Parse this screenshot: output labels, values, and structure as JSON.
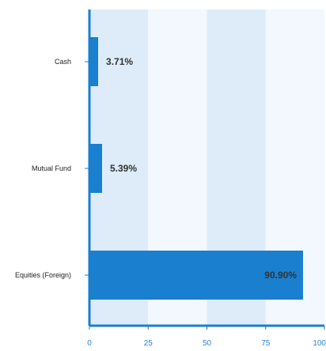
{
  "chart_data": {
    "type": "bar",
    "orientation": "horizontal",
    "categories": [
      "Cash",
      "Mutual Fund",
      "Equities (Foreign)"
    ],
    "values": [
      3.71,
      5.39,
      90.9
    ],
    "data_labels": [
      "3.71%",
      "5.39%",
      "90.90%"
    ],
    "xlim": [
      0,
      100
    ],
    "x_ticks": [
      0,
      25,
      50,
      75,
      100
    ],
    "title": "",
    "xlabel": "",
    "ylabel": "",
    "grid": false,
    "legend": "none",
    "colors": {
      "bar": "#1a7fcf",
      "axis": "#1a7fcf",
      "band_dark": "#ddecf8",
      "band_light": "#f2f8fd",
      "tick_text": "#2a86d1"
    }
  }
}
